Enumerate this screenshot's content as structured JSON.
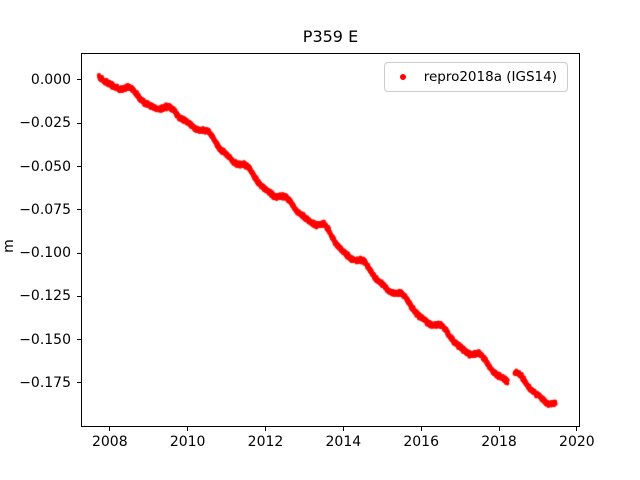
{
  "title": "P359 E",
  "legend": {
    "label": "repro2018a (IGS14)",
    "marker_color": "#ff0000",
    "position": "upper right"
  },
  "chart_data": {
    "type": "scatter",
    "title": "P359 E",
    "xlabel": "",
    "ylabel": "m",
    "grid": false,
    "legend_position": "upper right",
    "xlim": [
      2007.26,
      2020.08
    ],
    "ylim": [
      -0.2005,
      0.0156
    ],
    "xticks": [
      2008,
      2010,
      2012,
      2014,
      2016,
      2018,
      2020
    ],
    "xtick_labels": [
      "2008",
      "2010",
      "2012",
      "2014",
      "2016",
      "2018",
      "2020"
    ],
    "yticks": [
      0.0,
      -0.025,
      -0.05,
      -0.075,
      -0.1,
      -0.125,
      -0.15,
      -0.175
    ],
    "ytick_labels": [
      "0.000",
      "−0.025",
      "−0.050",
      "−0.075",
      "−0.100",
      "−0.125",
      "−0.150",
      "−0.175"
    ],
    "series": [
      {
        "name": "repro2018a (IGS14)",
        "color": "#ff0000",
        "marker": "dot",
        "marker_radius_px": 2,
        "x_start": 2007.72,
        "x_end": 2019.45,
        "cadence_years": 0.00274,
        "gaps": [
          [
            2018.22,
            2018.4
          ]
        ],
        "annual_amplitude_m": 0.002,
        "noise_sigma_m": 0.0009,
        "trend_keypoints": [
          [
            2007.72,
            0.002
          ],
          [
            2008.0,
            -0.001
          ],
          [
            2008.5,
            -0.007
          ],
          [
            2009.0,
            -0.013
          ],
          [
            2009.5,
            -0.018
          ],
          [
            2010.0,
            -0.023
          ],
          [
            2010.5,
            -0.032
          ],
          [
            2011.0,
            -0.042
          ],
          [
            2011.5,
            -0.052
          ],
          [
            2012.0,
            -0.062
          ],
          [
            2012.5,
            -0.07
          ],
          [
            2013.0,
            -0.078
          ],
          [
            2013.5,
            -0.086
          ],
          [
            2014.0,
            -0.098
          ],
          [
            2014.5,
            -0.107
          ],
          [
            2015.0,
            -0.117
          ],
          [
            2015.5,
            -0.126
          ],
          [
            2016.0,
            -0.136
          ],
          [
            2016.5,
            -0.144
          ],
          [
            2017.0,
            -0.153
          ],
          [
            2017.5,
            -0.161
          ],
          [
            2018.0,
            -0.17
          ],
          [
            2018.22,
            -0.1725
          ],
          [
            2018.4,
            -0.1705
          ],
          [
            2018.7,
            -0.176
          ],
          [
            2019.0,
            -0.181
          ],
          [
            2019.45,
            -0.189
          ]
        ]
      }
    ]
  }
}
